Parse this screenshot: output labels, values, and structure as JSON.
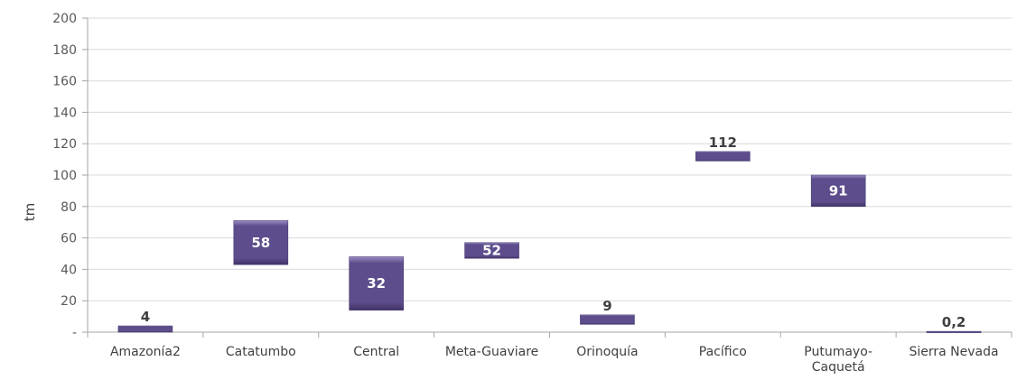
{
  "chart_data": {
    "type": "bar",
    "subtype": "floating",
    "ylabel": "tm",
    "y_ticks": [
      "-",
      "20",
      "40",
      "60",
      "80",
      "100",
      "120",
      "140",
      "160",
      "180",
      "200"
    ],
    "ylim": [
      0,
      200
    ],
    "grid": true,
    "categories": [
      "Amazonía2",
      "Catatumbo",
      "Central",
      "Meta-Guaviare",
      "Orinoquía",
      "Pacífico",
      "Putumayo-Caquetá",
      "Sierra Nevada"
    ],
    "category_lines": [
      [
        "Amazonía2"
      ],
      [
        "Catatumbo"
      ],
      [
        "Central"
      ],
      [
        "Meta-Guaviare"
      ],
      [
        "Orinoquía"
      ],
      [
        "Pacífico"
      ],
      [
        "Putumayo-",
        "Caquetá"
      ],
      [
        "Sierra Nevada"
      ]
    ],
    "bars": [
      {
        "label": "4",
        "base": 0,
        "top": 4
      },
      {
        "label": "58",
        "base": 43,
        "top": 71
      },
      {
        "label": "32",
        "base": 14,
        "top": 48
      },
      {
        "label": "52",
        "base": 47,
        "top": 57
      },
      {
        "label": "9",
        "base": 5,
        "top": 11
      },
      {
        "label": "112",
        "base": 109,
        "top": 115
      },
      {
        "label": "91",
        "base": 80,
        "top": 100
      },
      {
        "label": "0,2",
        "base": 0,
        "top": 0.5
      }
    ],
    "colors": {
      "bar": "#5d4d8c",
      "bar_light": "#9a8cc4",
      "bar_dark": "#3f3366",
      "grid": "#d9d9d9"
    }
  }
}
